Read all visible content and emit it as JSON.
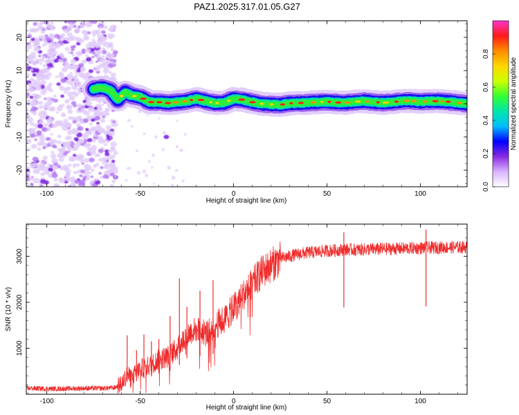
{
  "title": "PAZ1.2025.317.01.05.G27",
  "chart_data": [
    {
      "type": "heatmap",
      "name": "spectrogram",
      "xlabel": "Height of straight line (km)",
      "ylabel": "Frequency (Hz)",
      "xlim": [
        -111,
        125
      ],
      "ylim": [
        -25,
        25
      ],
      "xticks": [
        -100,
        -50,
        0,
        50,
        100
      ],
      "xtick_labels": [
        "-100",
        "-50",
        "0",
        "50",
        "100"
      ],
      "yticks": [
        -20,
        -10,
        0,
        10,
        20
      ],
      "ytick_labels": [
        "-20",
        "-10",
        "0",
        "10",
        "20"
      ],
      "noise_region_x": [
        -111,
        -67
      ],
      "signal_onset_x": -67,
      "ridge": {
        "x": [
          -75,
          -70,
          -66,
          -62,
          -58,
          -55,
          -50,
          -45,
          -40,
          -35,
          -30,
          -25,
          -20,
          -15,
          -10,
          -5,
          0,
          5,
          10,
          15,
          20,
          25,
          30,
          35,
          40,
          45,
          50,
          55,
          60,
          65,
          70,
          75,
          80,
          85,
          90,
          95,
          100,
          105,
          110,
          115,
          120,
          125
        ],
        "freq": [
          4.5,
          4.8,
          4.0,
          1.2,
          3.5,
          2.5,
          2.0,
          0.5,
          0.5,
          0.2,
          0.5,
          0.8,
          1.5,
          0.8,
          0.2,
          0.3,
          1.5,
          1.2,
          0.5,
          0.0,
          -0.2,
          -0.3,
          0.1,
          0.2,
          0.3,
          0.5,
          0.6,
          0.4,
          0.3,
          0.6,
          0.8,
          0.5,
          0.3,
          0.5,
          0.8,
          0.9,
          0.6,
          0.8,
          0.8,
          0.6,
          0.3,
          0.0
        ]
      },
      "colorbar": {
        "label": "Normalized spectral amplitude",
        "range": [
          0.0,
          1.0
        ],
        "ticks": [
          0.0,
          0.2,
          0.4,
          0.6,
          0.8
        ],
        "tick_labels": [
          "0.0",
          "0.2",
          "0.4",
          "0.6",
          "0.8"
        ],
        "colors": [
          "#ffffff",
          "#d9b3ff",
          "#8a2be2",
          "#0000ff",
          "#00bfff",
          "#00e6a8",
          "#33ff33",
          "#ccff00",
          "#ffd700",
          "#ff8c00",
          "#ff1a1a",
          "#ff33cc"
        ]
      }
    },
    {
      "type": "line",
      "name": "snr",
      "xlabel": "Height of straight line (km)",
      "ylabel": "SNR (10 * v/v)",
      "xlim": [
        -111,
        125
      ],
      "ylim": [
        0,
        3700
      ],
      "xticks": [
        -100,
        -50,
        0,
        50,
        100
      ],
      "xtick_labels": [
        "-100",
        "-50",
        "0",
        "50",
        "100"
      ],
      "yticks": [
        1000,
        2000,
        3000
      ],
      "ytick_labels": [
        "1000",
        "2000",
        "3000"
      ],
      "color": "#ee2a2a",
      "series": [
        {
          "name": "SNR",
          "x": [
            -111,
            -100,
            -90,
            -80,
            -70,
            -64,
            -60,
            -57,
            -55,
            -50,
            -45,
            -40,
            -35,
            -30,
            -25,
            -20,
            -15,
            -10,
            -5,
            0,
            5,
            10,
            15,
            20,
            25,
            30,
            35,
            40,
            45,
            50,
            55,
            60,
            65,
            70,
            80,
            90,
            100,
            110,
            125
          ],
          "values": [
            130,
            120,
            120,
            130,
            130,
            140,
            220,
            450,
            350,
            560,
            620,
            760,
            820,
            1000,
            1300,
            1420,
            1320,
            1500,
            1620,
            1880,
            2150,
            2400,
            2650,
            2800,
            2950,
            3000,
            3050,
            3080,
            3100,
            3120,
            3130,
            3150,
            3140,
            3150,
            3160,
            3170,
            3180,
            3190,
            3200
          ]
        }
      ],
      "spikes": [
        {
          "x": -57,
          "y": 1280
        },
        {
          "x": -52,
          "y": 960
        },
        {
          "x": -48,
          "y": 1300
        },
        {
          "x": -44,
          "y": 1150
        },
        {
          "x": -40,
          "y": 1200
        },
        {
          "x": -34,
          "y": 1700
        },
        {
          "x": -29,
          "y": 2520
        },
        {
          "x": -25,
          "y": 1900
        },
        {
          "x": -18,
          "y": 2250
        },
        {
          "x": -11,
          "y": 2480
        },
        {
          "x": 59,
          "y": 3520
        },
        {
          "x": 103,
          "y": 3580
        }
      ]
    }
  ]
}
